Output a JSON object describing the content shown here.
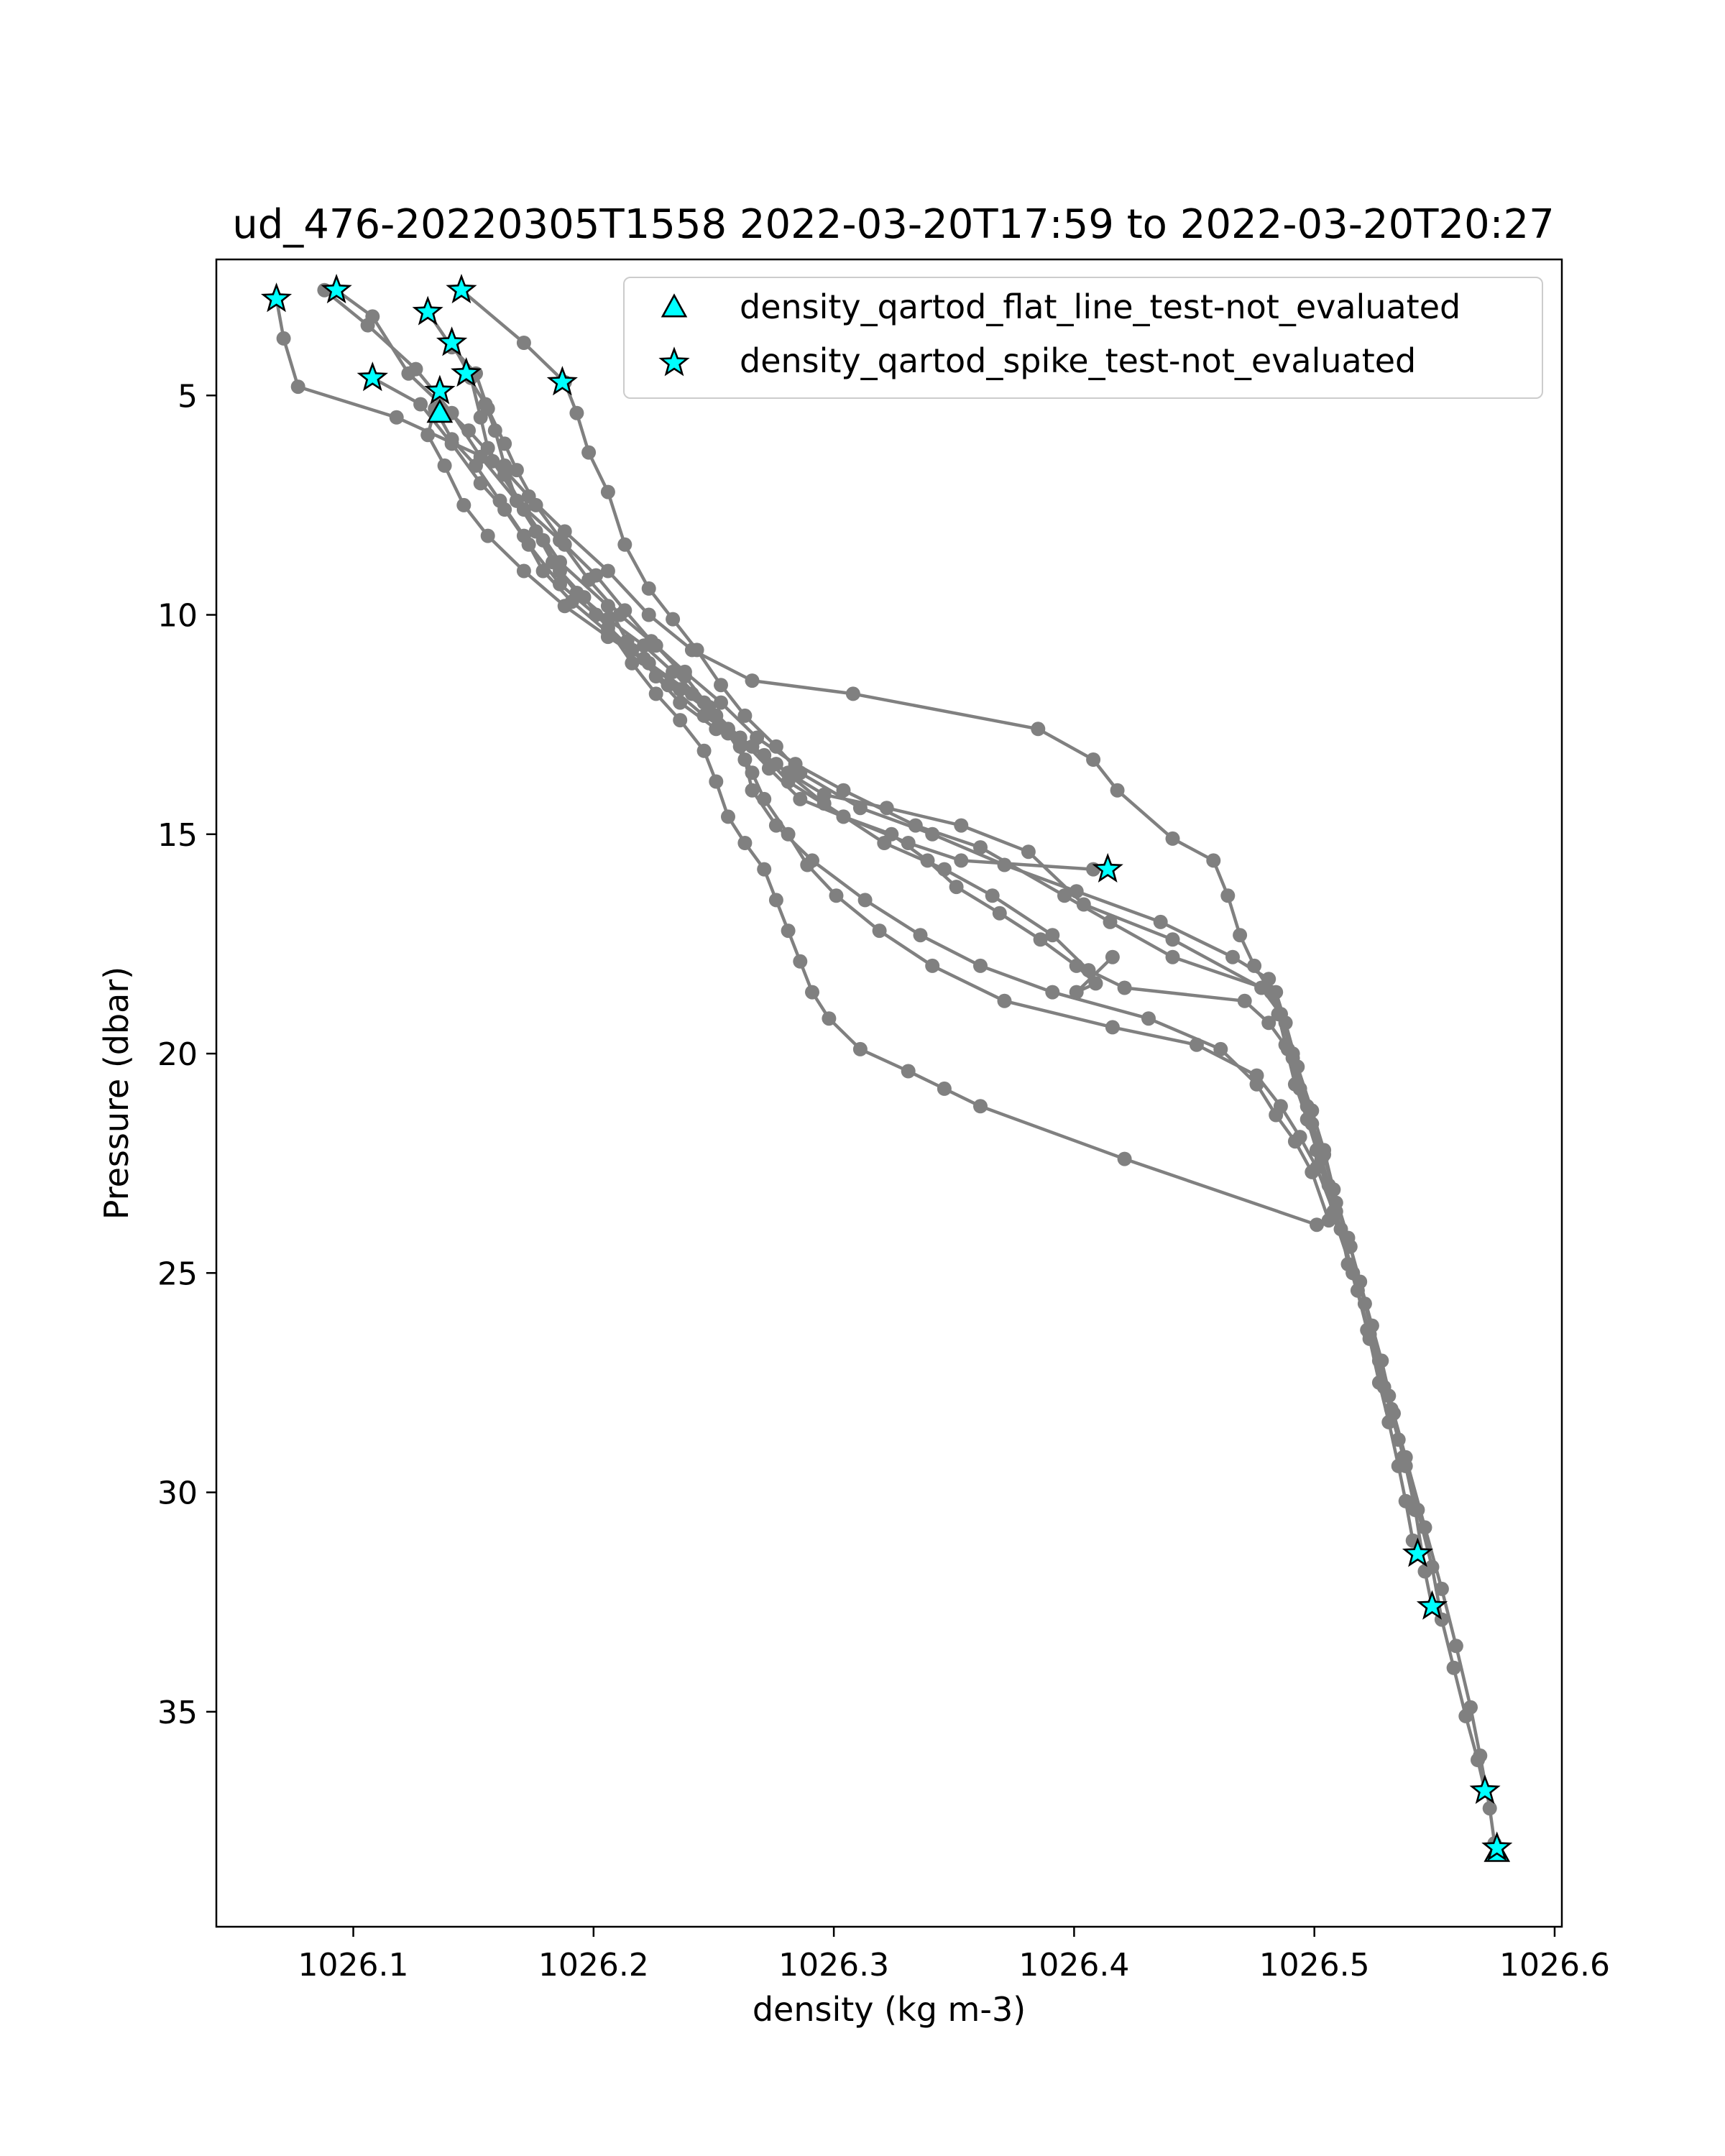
{
  "chart_data": {
    "type": "scatter",
    "title": "ud_476-20220305T1558 2022-03-20T17:59 to 2022-03-20T20:27",
    "xlabel": "density (kg m-3)",
    "ylabel": "Pressure (dbar)",
    "xlim": [
      1026.043,
      1026.603
    ],
    "ylim": [
      39.9,
      1.9
    ],
    "y_inverted": true,
    "x_ticks": [
      1026.1,
      1026.2,
      1026.3,
      1026.4,
      1026.5,
      1026.6
    ],
    "x_tick_labels": [
      "1026.1",
      "1026.2",
      "1026.3",
      "1026.4",
      "1026.5",
      "1026.6"
    ],
    "y_ticks": [
      5,
      10,
      15,
      20,
      25,
      30,
      35
    ],
    "y_tick_labels": [
      "5",
      "10",
      "15",
      "20",
      "25",
      "30",
      "35"
    ],
    "grid": false,
    "legend": {
      "placement": "upper right",
      "entries": [
        {
          "label": "density_qartod_flat_line_test-not_evaluated",
          "marker": "triangle",
          "color": "#00ffff"
        },
        {
          "label": "density_qartod_spike_test-not_evaluated",
          "marker": "star",
          "color": "#00ffff"
        }
      ]
    },
    "profile_color": "#808080",
    "flag_color": "#00ffff",
    "profiles": [
      [
        [
          1026.068,
          2.8
        ],
        [
          1026.071,
          3.7
        ],
        [
          1026.077,
          4.8
        ],
        [
          1026.118,
          5.5
        ],
        [
          1026.158,
          6.5
        ],
        [
          1026.186,
          8.8
        ],
        [
          1026.206,
          9.8
        ],
        [
          1026.214,
          10.6
        ],
        [
          1026.226,
          11.4
        ],
        [
          1026.236,
          12.0
        ],
        [
          1026.251,
          12.6
        ],
        [
          1026.271,
          13.2
        ],
        [
          1026.281,
          13.8
        ],
        [
          1026.304,
          14.6
        ],
        [
          1026.331,
          15.2
        ],
        [
          1026.353,
          15.6
        ],
        [
          1026.408,
          15.8
        ],
        [
          1026.414,
          15.8
        ]
      ],
      [
        [
          1026.093,
          2.6
        ],
        [
          1026.108,
          3.2
        ],
        [
          1026.123,
          4.5
        ],
        [
          1026.148,
          5.8
        ],
        [
          1026.173,
          7.3
        ],
        [
          1026.188,
          8.1
        ],
        [
          1026.206,
          9.0
        ],
        [
          1026.223,
          10.0
        ],
        [
          1026.241,
          10.8
        ],
        [
          1026.266,
          11.5
        ],
        [
          1026.308,
          11.8
        ],
        [
          1026.385,
          12.6
        ],
        [
          1026.408,
          13.3
        ],
        [
          1026.418,
          14.0
        ],
        [
          1026.441,
          15.1
        ],
        [
          1026.458,
          15.6
        ],
        [
          1026.464,
          16.4
        ],
        [
          1026.469,
          17.3
        ],
        [
          1026.475,
          18.0
        ],
        [
          1026.482,
          18.6
        ],
        [
          1026.485,
          19.1
        ],
        [
          1026.488,
          19.8
        ],
        [
          1026.492,
          20.7
        ],
        [
          1026.497,
          21.5
        ],
        [
          1026.501,
          22.2
        ],
        [
          1026.506,
          23.0
        ],
        [
          1026.511,
          24.0
        ],
        [
          1026.514,
          24.8
        ],
        [
          1026.518,
          25.4
        ],
        [
          1026.523,
          26.5
        ],
        [
          1026.527,
          27.5
        ],
        [
          1026.531,
          28.4
        ],
        [
          1026.535,
          29.4
        ],
        [
          1026.538,
          30.2
        ],
        [
          1026.541,
          31.1
        ],
        [
          1026.543,
          31.4
        ]
      ],
      [
        [
          1026.108,
          4.6
        ],
        [
          1026.128,
          5.2
        ],
        [
          1026.141,
          6.1
        ],
        [
          1026.153,
          7.0
        ],
        [
          1026.163,
          7.6
        ],
        [
          1026.173,
          8.4
        ],
        [
          1026.186,
          9.3
        ],
        [
          1026.201,
          10.0
        ],
        [
          1026.216,
          10.8
        ],
        [
          1026.231,
          11.6
        ],
        [
          1026.246,
          12.3
        ],
        [
          1026.266,
          13.0
        ],
        [
          1026.281,
          13.6
        ],
        [
          1026.296,
          14.1
        ],
        [
          1026.322,
          14.4
        ],
        [
          1026.353,
          14.8
        ],
        [
          1026.381,
          15.4
        ],
        [
          1026.404,
          16.6
        ],
        [
          1026.441,
          17.4
        ],
        [
          1026.478,
          18.5
        ],
        [
          1026.486,
          19.1
        ],
        [
          1026.491,
          20.0
        ],
        [
          1026.499,
          21.6
        ],
        [
          1026.504,
          22.3
        ],
        [
          1026.509,
          23.4
        ],
        [
          1026.515,
          24.4
        ],
        [
          1026.519,
          25.2
        ],
        [
          1026.524,
          26.2
        ],
        [
          1026.528,
          27.0
        ],
        [
          1026.533,
          28.2
        ],
        [
          1026.538,
          29.4
        ],
        [
          1026.542,
          30.4
        ],
        [
          1026.546,
          31.8
        ],
        [
          1026.549,
          32.6
        ]
      ],
      [
        [
          1026.131,
          3.1
        ],
        [
          1026.141,
          3.9
        ],
        [
          1026.151,
          4.5
        ],
        [
          1026.156,
          5.3
        ],
        [
          1026.163,
          6.1
        ],
        [
          1026.168,
          6.7
        ],
        [
          1026.176,
          7.5
        ],
        [
          1026.188,
          8.4
        ],
        [
          1026.201,
          9.1
        ],
        [
          1026.213,
          9.9
        ],
        [
          1026.224,
          10.6
        ],
        [
          1026.238,
          11.3
        ],
        [
          1026.253,
          12.0
        ],
        [
          1026.268,
          12.8
        ],
        [
          1026.284,
          13.4
        ],
        [
          1026.304,
          14.0
        ],
        [
          1026.334,
          14.8
        ],
        [
          1026.361,
          15.3
        ],
        [
          1026.396,
          16.4
        ],
        [
          1026.415,
          17.0
        ],
        [
          1026.441,
          17.8
        ],
        [
          1026.484,
          18.6
        ],
        [
          1026.488,
          19.3
        ],
        [
          1026.493,
          20.3
        ],
        [
          1026.499,
          21.3
        ],
        [
          1026.504,
          22.2
        ],
        [
          1026.508,
          23.1
        ],
        [
          1026.514,
          24.2
        ],
        [
          1026.521,
          25.7
        ],
        [
          1026.527,
          27.0
        ],
        [
          1026.532,
          28.1
        ],
        [
          1026.537,
          29.2
        ],
        [
          1026.543,
          30.4
        ],
        [
          1026.549,
          31.7
        ],
        [
          1026.553,
          32.9
        ],
        [
          1026.558,
          34.0
        ],
        [
          1026.563,
          35.1
        ],
        [
          1026.568,
          36.1
        ],
        [
          1026.571,
          36.8
        ]
      ],
      [
        [
          1026.136,
          4.9
        ],
        [
          1026.131,
          5.9
        ],
        [
          1026.138,
          6.6
        ],
        [
          1026.146,
          7.5
        ],
        [
          1026.156,
          8.2
        ],
        [
          1026.171,
          9.0
        ],
        [
          1026.188,
          9.8
        ],
        [
          1026.206,
          10.5
        ],
        [
          1026.223,
          11.1
        ],
        [
          1026.241,
          11.8
        ],
        [
          1026.256,
          12.6
        ],
        [
          1026.276,
          13.4
        ],
        [
          1026.296,
          14.3
        ],
        [
          1026.321,
          15.2
        ],
        [
          1026.346,
          15.8
        ],
        [
          1026.366,
          16.4
        ],
        [
          1026.391,
          17.3
        ],
        [
          1026.406,
          18.1
        ],
        [
          1026.421,
          18.5
        ],
        [
          1026.471,
          18.8
        ],
        [
          1026.481,
          19.3
        ],
        [
          1026.489,
          19.9
        ],
        [
          1026.494,
          20.8
        ],
        [
          1026.501,
          22.2
        ],
        [
          1026.508,
          23.7
        ],
        [
          1026.516,
          25.0
        ],
        [
          1026.523,
          26.4
        ],
        [
          1026.531,
          27.8
        ],
        [
          1026.538,
          29.2
        ],
        [
          1026.546,
          30.8
        ],
        [
          1026.553,
          32.2
        ],
        [
          1026.559,
          33.5
        ],
        [
          1026.565,
          34.9
        ],
        [
          1026.569,
          36.0
        ],
        [
          1026.573,
          37.2
        ],
        [
          1026.575,
          38.0
        ],
        [
          1026.576,
          38.1
        ]
      ],
      [
        [
          1026.145,
          2.6
        ],
        [
          1026.171,
          3.8
        ],
        [
          1026.188,
          4.7
        ],
        [
          1026.193,
          5.4
        ],
        [
          1026.198,
          6.3
        ],
        [
          1026.206,
          7.2
        ],
        [
          1026.213,
          8.4
        ],
        [
          1026.223,
          9.4
        ],
        [
          1026.233,
          10.1
        ],
        [
          1026.243,
          10.8
        ],
        [
          1026.253,
          11.6
        ],
        [
          1026.263,
          12.3
        ],
        [
          1026.276,
          13.0
        ],
        [
          1026.286,
          13.6
        ],
        [
          1026.311,
          14.4
        ],
        [
          1026.341,
          15.0
        ],
        [
          1026.371,
          15.7
        ],
        [
          1026.401,
          16.3
        ],
        [
          1026.436,
          17.0
        ],
        [
          1026.466,
          17.8
        ],
        [
          1026.481,
          18.3
        ],
        [
          1026.486,
          19.1
        ],
        [
          1026.491,
          20.1
        ],
        [
          1026.497,
          21.2
        ],
        [
          1026.503,
          22.4
        ],
        [
          1026.509,
          23.6
        ],
        [
          1026.516,
          25.0
        ],
        [
          1026.522,
          26.3
        ],
        [
          1026.529,
          27.6
        ],
        [
          1026.535,
          28.8
        ]
      ],
      [
        [
          1026.134,
          5.3
        ],
        [
          1026.141,
          6.0
        ],
        [
          1026.151,
          6.6
        ],
        [
          1026.161,
          7.4
        ],
        [
          1026.171,
          8.2
        ],
        [
          1026.179,
          9.0
        ],
        [
          1026.191,
          9.7
        ],
        [
          1026.206,
          10.4
        ],
        [
          1026.221,
          11.0
        ],
        [
          1026.236,
          11.7
        ],
        [
          1026.251,
          12.3
        ],
        [
          1026.261,
          13.0
        ],
        [
          1026.266,
          13.6
        ],
        [
          1026.271,
          14.2
        ],
        [
          1026.281,
          15.0
        ],
        [
          1026.289,
          15.7
        ],
        [
          1026.301,
          16.4
        ],
        [
          1026.319,
          17.2
        ],
        [
          1026.341,
          18.0
        ],
        [
          1026.371,
          18.8
        ],
        [
          1026.416,
          19.4
        ],
        [
          1026.451,
          19.8
        ],
        [
          1026.476,
          20.5
        ],
        [
          1026.486,
          21.2
        ],
        [
          1026.494,
          21.9
        ],
        [
          1026.501,
          22.6
        ],
        [
          1026.508,
          23.6
        ]
      ],
      [
        [
          1026.147,
          4.5
        ],
        [
          1026.155,
          5.2
        ],
        [
          1026.159,
          5.8
        ],
        [
          1026.163,
          6.6
        ],
        [
          1026.168,
          7.4
        ],
        [
          1026.176,
          8.1
        ],
        [
          1026.183,
          8.8
        ],
        [
          1026.193,
          9.5
        ],
        [
          1026.206,
          10.1
        ],
        [
          1026.221,
          10.7
        ],
        [
          1026.233,
          11.3
        ],
        [
          1026.246,
          12.0
        ],
        [
          1026.256,
          12.7
        ],
        [
          1026.263,
          13.3
        ],
        [
          1026.266,
          14.0
        ],
        [
          1026.276,
          14.8
        ],
        [
          1026.291,
          15.6
        ],
        [
          1026.313,
          16.5
        ],
        [
          1026.336,
          17.3
        ],
        [
          1026.361,
          18.0
        ],
        [
          1026.391,
          18.6
        ],
        [
          1026.431,
          19.2
        ],
        [
          1026.461,
          19.9
        ],
        [
          1026.476,
          20.7
        ],
        [
          1026.484,
          21.4
        ],
        [
          1026.492,
          22.0
        ],
        [
          1026.499,
          22.7
        ],
        [
          1026.506,
          23.8
        ]
      ],
      [
        [
          1026.141,
          3.8
        ],
        [
          1026.149,
          4.6
        ],
        [
          1026.153,
          5.5
        ],
        [
          1026.156,
          6.2
        ],
        [
          1026.163,
          6.8
        ],
        [
          1026.171,
          7.6
        ],
        [
          1026.179,
          8.3
        ],
        [
          1026.186,
          9.0
        ],
        [
          1026.196,
          9.6
        ],
        [
          1026.206,
          10.3
        ],
        [
          1026.216,
          11.1
        ],
        [
          1026.226,
          11.8
        ],
        [
          1026.236,
          12.4
        ],
        [
          1026.246,
          13.1
        ],
        [
          1026.251,
          13.8
        ],
        [
          1026.256,
          14.6
        ],
        [
          1026.263,
          15.2
        ],
        [
          1026.271,
          15.8
        ],
        [
          1026.276,
          16.5
        ],
        [
          1026.281,
          17.2
        ],
        [
          1026.286,
          17.9
        ],
        [
          1026.291,
          18.6
        ],
        [
          1026.298,
          19.2
        ],
        [
          1026.311,
          19.9
        ],
        [
          1026.331,
          20.4
        ],
        [
          1026.346,
          20.8
        ],
        [
          1026.361,
          21.2
        ],
        [
          1026.421,
          22.4
        ],
        [
          1026.501,
          23.9
        ]
      ],
      [
        [
          1026.088,
          2.6
        ],
        [
          1026.106,
          3.4
        ],
        [
          1026.126,
          4.4
        ],
        [
          1026.141,
          5.4
        ],
        [
          1026.153,
          6.4
        ],
        [
          1026.168,
          7.4
        ],
        [
          1026.186,
          8.3
        ],
        [
          1026.198,
          9.2
        ],
        [
          1026.211,
          10.0
        ],
        [
          1026.226,
          10.7
        ],
        [
          1026.238,
          11.4
        ],
        [
          1026.248,
          12.1
        ],
        [
          1026.261,
          12.8
        ],
        [
          1026.273,
          13.5
        ],
        [
          1026.286,
          14.2
        ],
        [
          1026.304,
          14.6
        ],
        [
          1026.324,
          15.0
        ],
        [
          1026.339,
          15.6
        ],
        [
          1026.351,
          16.2
        ],
        [
          1026.369,
          16.8
        ],
        [
          1026.386,
          17.4
        ],
        [
          1026.401,
          18.0
        ],
        [
          1026.409,
          18.4
        ],
        [
          1026.401,
          18.6
        ],
        [
          1026.416,
          17.8
        ]
      ]
    ],
    "flat_line_not_evaluated": [
      [
        1026.136,
        5.4
      ],
      [
        1026.576,
        38.2
      ]
    ],
    "spike_not_evaluated": [
      [
        1026.068,
        2.8
      ],
      [
        1026.093,
        2.6
      ],
      [
        1026.131,
        3.1
      ],
      [
        1026.145,
        2.6
      ],
      [
        1026.141,
        3.8
      ],
      [
        1026.108,
        4.6
      ],
      [
        1026.136,
        4.9
      ],
      [
        1026.147,
        4.5
      ],
      [
        1026.187,
        4.7
      ],
      [
        1026.414,
        15.8
      ],
      [
        1026.543,
        31.4
      ],
      [
        1026.549,
        32.6
      ],
      [
        1026.571,
        36.8
      ],
      [
        1026.576,
        38.1
      ]
    ]
  }
}
